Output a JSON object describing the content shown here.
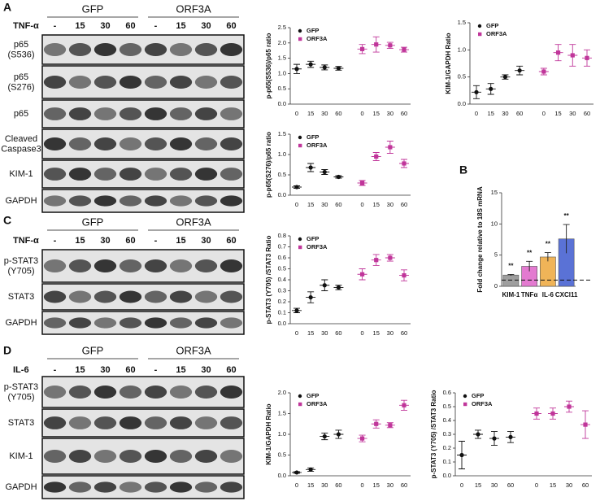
{
  "blots": [
    {
      "panel": "A",
      "groups": [
        "GFP",
        "ORF3A"
      ],
      "treatment": "TNF-α",
      "lanes": [
        "-",
        "15",
        "30",
        "60",
        "-",
        "15",
        "30",
        "60"
      ],
      "rows": [
        "p65 (S536)",
        "p65 (S276)",
        "p65",
        "Cleaved Caspase3",
        "KIM-1",
        "GAPDH"
      ]
    },
    {
      "panel": "C",
      "groups": [
        "GFP",
        "ORF3A"
      ],
      "treatment": "TNF-α",
      "lanes": [
        "-",
        "15",
        "30",
        "60",
        "-",
        "15",
        "30",
        "60"
      ],
      "rows": [
        "p-STAT3 (Y705)",
        "STAT3",
        "GAPDH"
      ]
    },
    {
      "panel": "D",
      "groups": [
        "GFP",
        "ORF3A"
      ],
      "treatment": "IL-6",
      "lanes": [
        "-",
        "15",
        "30",
        "60",
        "-",
        "15",
        "30",
        "60"
      ],
      "rows": [
        "p-STAT3 (Y705)",
        "STAT3",
        "KIM-1",
        "GAPDH"
      ]
    }
  ],
  "chart_data": [
    {
      "type": "dot",
      "y_label": "p-p65(S536)/p65 ratio",
      "categories": [
        "0",
        "15",
        "30",
        "60",
        "0",
        "15",
        "30",
        "60"
      ],
      "ylim": [
        0,
        2.5
      ],
      "yticks": [
        {
          "value": 0,
          "label": "0.0"
        },
        0.5,
        {
          "value": 1,
          "label": "1.0"
        },
        1.5,
        {
          "value": 2,
          "label": "2.0"
        },
        2.5
      ],
      "series": [
        {
          "name": "GFP",
          "color": "#111111",
          "values": [
            1.15,
            1.3,
            1.2,
            1.17,
            null,
            null,
            null,
            null
          ],
          "errors": [
            0.15,
            0.1,
            0.08,
            0.06,
            null,
            null,
            null,
            null
          ]
        },
        {
          "name": "ORF3A",
          "color": "#c0369a",
          "values": [
            null,
            null,
            null,
            null,
            1.8,
            1.95,
            1.92,
            1.78
          ],
          "errors": [
            null,
            null,
            null,
            null,
            0.15,
            0.25,
            0.1,
            0.08
          ]
        }
      ]
    },
    {
      "type": "dot",
      "y_label": "KIM-1/GAPDH Ratio",
      "categories": [
        "0",
        "15",
        "30",
        "60",
        "0",
        "15",
        "30",
        "60"
      ],
      "ylim": [
        0,
        1.5
      ],
      "yticks": [
        {
          "value": 0,
          "label": "0.0"
        },
        0.5,
        {
          "value": 1,
          "label": "1.0"
        },
        1.5
      ],
      "series": [
        {
          "name": "GFP",
          "color": "#111111",
          "values": [
            0.22,
            0.28,
            0.5,
            0.62,
            null,
            null,
            null,
            null
          ],
          "errors": [
            0.12,
            0.1,
            0.04,
            0.08,
            null,
            null,
            null,
            null
          ]
        },
        {
          "name": "ORF3A",
          "color": "#c0369a",
          "values": [
            null,
            null,
            null,
            null,
            0.6,
            0.95,
            0.9,
            0.85
          ],
          "errors": [
            null,
            null,
            null,
            null,
            0.06,
            0.15,
            0.2,
            0.15
          ]
        }
      ]
    },
    {
      "type": "dot",
      "y_label": "p-p65(S276)/p65 ratio",
      "categories": [
        "0",
        "15",
        "30",
        "60",
        "0",
        "15",
        "30",
        "60"
      ],
      "ylim": [
        0,
        1.5
      ],
      "yticks": [
        {
          "value": 0,
          "label": "0.0"
        },
        0.5,
        {
          "value": 1,
          "label": "1.0"
        },
        1.5
      ],
      "series": [
        {
          "name": "GFP",
          "color": "#111111",
          "values": [
            0.2,
            0.68,
            0.57,
            0.45,
            null,
            null,
            null,
            null
          ],
          "errors": [
            0.03,
            0.1,
            0.06,
            0.03,
            null,
            null,
            null,
            null
          ]
        },
        {
          "name": "ORF3A",
          "color": "#c0369a",
          "values": [
            null,
            null,
            null,
            null,
            0.3,
            0.95,
            1.18,
            0.78
          ],
          "errors": [
            null,
            null,
            null,
            null,
            0.06,
            0.1,
            0.15,
            0.1
          ]
        }
      ]
    },
    {
      "type": "dot",
      "y_label": "p-STAT3 (Y705) /STAT3 Ratio",
      "categories": [
        "0",
        "15",
        "30",
        "60",
        "0",
        "15",
        "30",
        "60"
      ],
      "ylim": [
        0,
        0.8
      ],
      "yticks": [
        {
          "value": 0,
          "label": "0.0"
        },
        0.1,
        0.2,
        0.3,
        0.4,
        0.5,
        0.6,
        0.7,
        0.8
      ],
      "series": [
        {
          "name": "GFP",
          "color": "#111111",
          "values": [
            0.12,
            0.24,
            0.35,
            0.33,
            null,
            null,
            null,
            null
          ],
          "errors": [
            0.02,
            0.05,
            0.05,
            0.02,
            null,
            null,
            null,
            null
          ]
        },
        {
          "name": "ORF3A",
          "color": "#c0369a",
          "values": [
            null,
            null,
            null,
            null,
            0.45,
            0.58,
            0.6,
            0.44
          ],
          "errors": [
            null,
            null,
            null,
            null,
            0.05,
            0.05,
            0.03,
            0.05
          ]
        }
      ]
    },
    {
      "type": "bar",
      "panel": "B",
      "y_label": "Fold change relative to 18S mRNA",
      "categories": [
        "KIM-1",
        "TNFα",
        "IL-6",
        "CXCl11"
      ],
      "values": [
        1.8,
        3.2,
        4.7,
        7.6
      ],
      "errors": [
        0.1,
        0.8,
        0.7,
        2.3
      ],
      "colors": [
        "#9e9e9e",
        "#e37ad0",
        "#f0b458",
        "#5a72d6"
      ],
      "annotations": [
        "**",
        "**",
        "**",
        "**"
      ],
      "hline": 1,
      "ylim": [
        0,
        15
      ],
      "yticks": [
        0,
        5,
        10,
        15
      ]
    },
    {
      "type": "dot",
      "y_label": "KIM-1/GAPDH Ratio",
      "categories": [
        "0",
        "15",
        "30",
        "60",
        "0",
        "15",
        "30",
        "60"
      ],
      "ylim": [
        0,
        2
      ],
      "yticks": [
        {
          "value": 0,
          "label": "0.0"
        },
        0.5,
        {
          "value": 1,
          "label": "1.0"
        },
        1.5,
        {
          "value": 2,
          "label": "2.0"
        }
      ],
      "series": [
        {
          "name": "GFP",
          "color": "#111111",
          "values": [
            0.08,
            0.15,
            0.95,
            1.0,
            null,
            null,
            null,
            null
          ],
          "errors": [
            0.02,
            0.04,
            0.08,
            0.1,
            null,
            null,
            null,
            null
          ]
        },
        {
          "name": "ORF3A",
          "color": "#c0369a",
          "values": [
            null,
            null,
            null,
            null,
            0.9,
            1.25,
            1.22,
            1.7
          ],
          "errors": [
            null,
            null,
            null,
            null,
            0.08,
            0.1,
            0.06,
            0.12
          ]
        }
      ]
    },
    {
      "type": "dot",
      "y_label": "p-STAT3 (Y705) /STAT3 Ratio",
      "categories": [
        "0",
        "15",
        "30",
        "60",
        "0",
        "15",
        "30",
        "60"
      ],
      "ylim": [
        0,
        0.6
      ],
      "yticks": [
        {
          "value": 0,
          "label": "0.0"
        },
        0.1,
        0.2,
        0.3,
        0.4,
        0.5,
        0.6
      ],
      "series": [
        {
          "name": "GFP",
          "color": "#111111",
          "values": [
            0.15,
            0.3,
            0.27,
            0.28,
            null,
            null,
            null,
            null
          ],
          "errors": [
            0.1,
            0.03,
            0.05,
            0.04,
            null,
            null,
            null,
            null
          ]
        },
        {
          "name": "ORF3A",
          "color": "#c0369a",
          "values": [
            null,
            null,
            null,
            null,
            0.45,
            0.45,
            0.5,
            0.37
          ],
          "errors": [
            null,
            null,
            null,
            null,
            0.04,
            0.04,
            0.04,
            0.1
          ]
        }
      ]
    }
  ]
}
